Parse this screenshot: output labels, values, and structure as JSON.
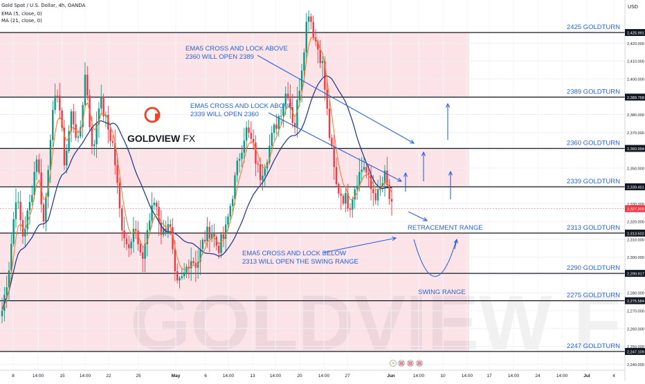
{
  "header": {
    "title": "Gold Spot / U.S. Dollar, 4h, OANDA",
    "indicator1": "EMA (5, close, 0)",
    "indicator2": "MA (21, close, 0)",
    "currency": "USD"
  },
  "watermark": "GOLDVIEW FX",
  "logo": {
    "text_a": "GOLDVIEW",
    "text_b": "FX",
    "accent": "#e8472b"
  },
  "colors": {
    "zone": "#fbe3e8",
    "up": "#089981",
    "down": "#f23645",
    "ema": "#f57c2a",
    "ma": "#2a3a8f",
    "annotation": "#2a62d8",
    "level_line": "#131722"
  },
  "chart_data": {
    "type": "candlestick",
    "symbol": "XAUUSD",
    "timeframe": "4h",
    "ylim": [
      2237,
      2455
    ],
    "y_ticks": [
      2240,
      2250,
      2260,
      2270,
      2280,
      2290,
      2300,
      2310,
      2320,
      2330,
      2340,
      2350,
      2360,
      2370,
      2380,
      2390,
      2400,
      2410,
      2420
    ],
    "x_ticks": [
      "8",
      "14:00",
      "15",
      "14:00",
      "22",
      "25",
      "May",
      "6",
      "14:00",
      "13",
      "14:00",
      "20",
      "14:00",
      "27",
      "Jun",
      "14:00",
      "10",
      "14:00",
      "17",
      "14:00",
      "24",
      "14:00",
      "Jul",
      "4"
    ],
    "levels": [
      {
        "price": 2425.991,
        "label": "2425 GOLDTURN",
        "tag": "2,425.991"
      },
      {
        "price": 2389.768,
        "label": "2389 GOLDTURN",
        "tag": "2,389.768"
      },
      {
        "price": 2360.994,
        "label": "2360 GOLDTURN",
        "tag": "2,360.994"
      },
      {
        "price": 2339.451,
        "label": "2339 GOLDTURN",
        "tag": "2,339.451"
      },
      {
        "price": 2313.502,
        "label": "2313 GOLDTURN",
        "tag": "2,313.502"
      },
      {
        "price": 2290.917,
        "label": "2290 GOLDTURN",
        "tag": "2,290.917"
      },
      {
        "price": 2275.584,
        "label": "2275 GOLDTURN",
        "tag": "2,275.584"
      },
      {
        "price": 2247.109,
        "label": "2247 GOLDTURN",
        "tag": "2,247.109"
      }
    ],
    "current_price": {
      "price": 2327.2,
      "tag": "2,327.200"
    },
    "zones": [
      [
        2389.768,
        2425.991
      ],
      [
        2339.451,
        2360.994
      ],
      [
        2247.109,
        2313.502
      ]
    ],
    "close_path": [
      2270,
      2295,
      2335,
      2312,
      2330,
      2358,
      2318,
      2372,
      2395,
      2352,
      2382,
      2362,
      2405,
      2356,
      2390,
      2375,
      2362,
      2322,
      2306,
      2318,
      2296,
      2318,
      2333,
      2312,
      2322,
      2282,
      2288,
      2300,
      2296,
      2310,
      2316,
      2305,
      2312,
      2333,
      2355,
      2372,
      2363,
      2345,
      2356,
      2370,
      2382,
      2395,
      2372,
      2405,
      2440,
      2422,
      2410,
      2370,
      2340,
      2334,
      2330,
      2344,
      2352,
      2338,
      2334,
      2345,
      2327
    ],
    "annotations": {
      "note1": [
        "EMA5 CROSS AND LOCK ABOVE",
        "2360 WILL OPEN 2389"
      ],
      "note2": [
        "EMA5 CROSS AND LOCK ABOVE",
        "2339 WILL OPEN 2360"
      ],
      "note3": [
        "EMA5 CROSS AND LOCK BELOW",
        "2313 WILL OPEN THE SWING RANGE"
      ],
      "retracement": "RETRACEMENT RANGE",
      "swing": "SWING RANGE"
    }
  }
}
